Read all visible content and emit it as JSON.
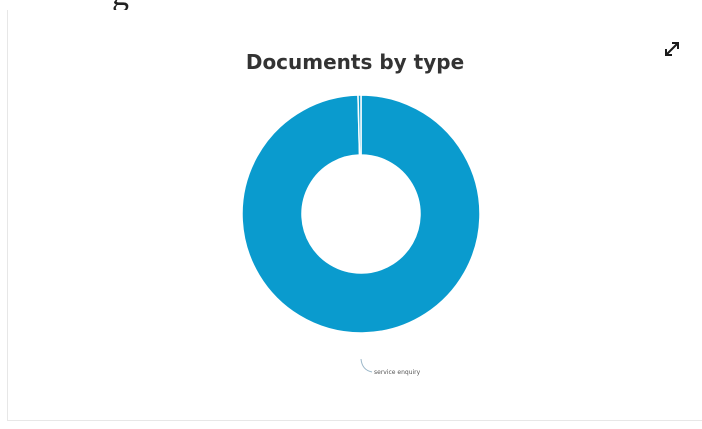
{
  "header": {
    "partial_text": "g"
  },
  "widget": {
    "expand_icon": "expand-icon"
  },
  "colors": {
    "slice": "#0a9bce",
    "separator": "#ffffff",
    "leader_line": "#9ab6c8"
  },
  "chart_data": {
    "type": "pie",
    "variant": "donut",
    "title": "Documents by type",
    "slices": [
      {
        "label": "service enquiry",
        "value": 99.6
      },
      {
        "label": "",
        "value": 0.4
      }
    ],
    "legend": "none"
  }
}
